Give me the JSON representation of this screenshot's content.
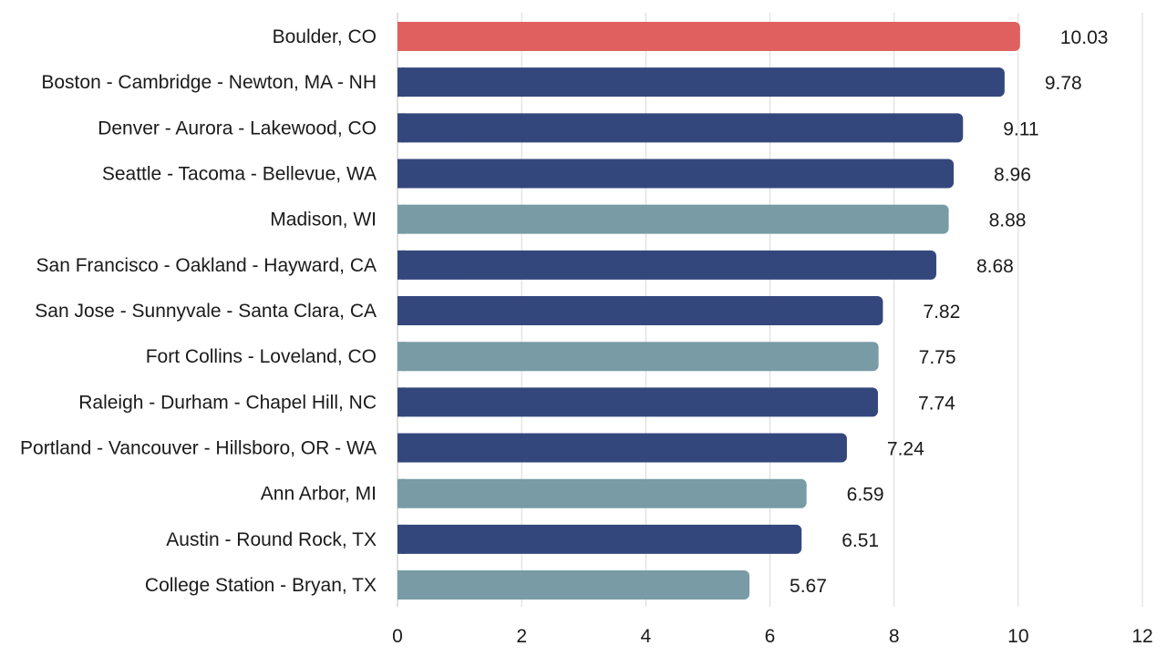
{
  "chart_data": {
    "type": "bar",
    "orientation": "horizontal",
    "categories": [
      "Boulder, CO",
      "Boston - Cambridge - Newton, MA - NH",
      "Denver - Aurora - Lakewood, CO",
      "Seattle - Tacoma - Bellevue, WA",
      "Madison, WI",
      "San Francisco - Oakland - Hayward, CA",
      "San Jose - Sunnyvale - Santa Clara, CA",
      "Fort Collins - Loveland, CO",
      "Raleigh - Durham - Chapel Hill, NC",
      "Portland - Vancouver - Hillsboro, OR - WA",
      "Ann Arbor, MI",
      "Austin - Round Rock, TX",
      "College Station - Bryan, TX"
    ],
    "values": [
      10.03,
      9.78,
      9.11,
      8.96,
      8.88,
      8.68,
      7.82,
      7.75,
      7.74,
      7.24,
      6.59,
      6.51,
      5.67
    ],
    "value_labels": [
      "10.03",
      "9.78",
      "9.11",
      "8.96",
      "8.88",
      "8.68",
      "7.82",
      "7.75",
      "7.74",
      "7.24",
      "6.59",
      "6.51",
      "5.67"
    ],
    "bar_colors": [
      "#e06060",
      "#34477d",
      "#34477d",
      "#34477d",
      "#789ba5",
      "#34477d",
      "#34477d",
      "#789ba5",
      "#34477d",
      "#34477d",
      "#789ba5",
      "#34477d",
      "#789ba5"
    ],
    "title": "",
    "xlabel": "",
    "ylabel": "",
    "xlim": [
      0,
      12
    ],
    "x_ticks": [
      0,
      2,
      4,
      6,
      8,
      10,
      12
    ],
    "x_tick_labels": [
      "0",
      "2",
      "4",
      "6",
      "8",
      "10",
      "12"
    ],
    "grid": "vertical",
    "legend": "none"
  }
}
